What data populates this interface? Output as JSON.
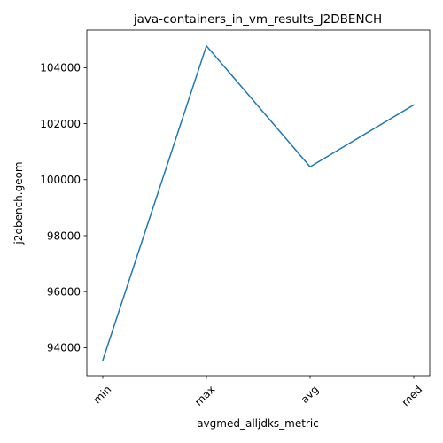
{
  "chart_data": {
    "type": "line",
    "title": "java-containers_in_vm_results_J2DBENCH",
    "xlabel": "avgmed_alljdks_metric",
    "ylabel": "j2dbench.geom",
    "categories": [
      "min",
      "max",
      "avg",
      "med"
    ],
    "values": [
      93550,
      104780,
      100460,
      102670
    ],
    "yticks": [
      94000,
      96000,
      98000,
      100000,
      102000,
      104000
    ],
    "ylim": [
      93000,
      105340
    ],
    "grid": false,
    "line_color": "#1f77b4"
  }
}
